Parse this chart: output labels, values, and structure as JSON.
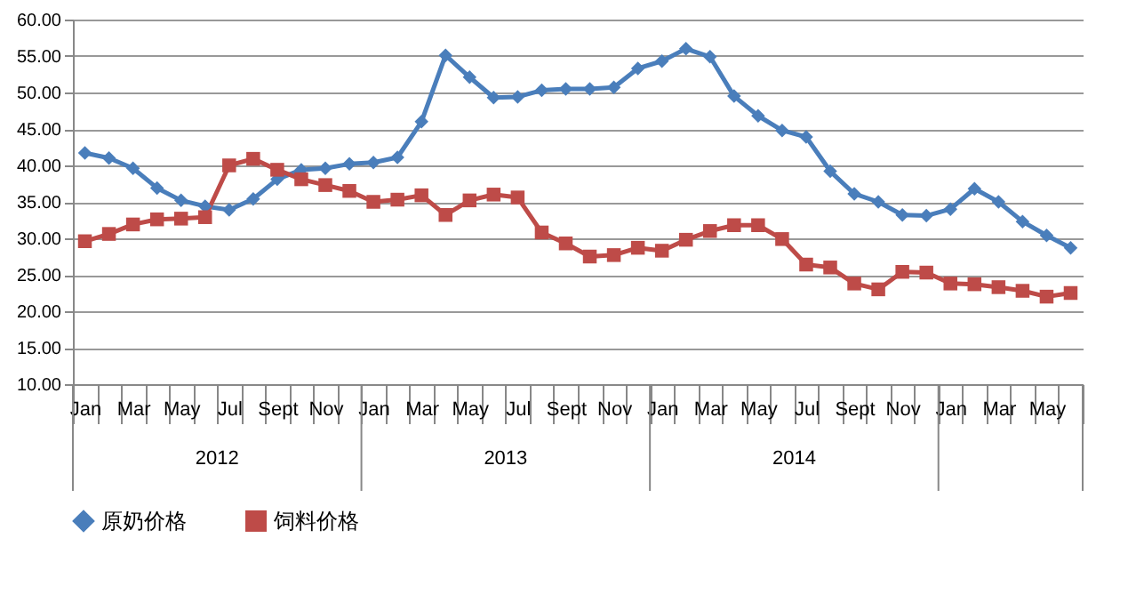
{
  "chart_data": {
    "type": "line",
    "categories": [
      "Jan",
      null,
      "Mar",
      null,
      "May",
      null,
      "Jul",
      null,
      "Sept",
      null,
      "Nov",
      null,
      "Jan",
      null,
      "Mar",
      null,
      "May",
      null,
      "Jul",
      null,
      "Sept",
      null,
      "Nov",
      null,
      "Jan",
      null,
      "Mar",
      null,
      "May",
      null,
      "Jul",
      null,
      "Sept",
      null,
      "Nov",
      null,
      "Jan",
      null,
      "Mar",
      null,
      "May",
      null
    ],
    "series": [
      {
        "name": "原奶价格",
        "color": "#4a7ebb",
        "marker": "diamond",
        "values": [
          41.7,
          41.0,
          39.6,
          36.9,
          35.2,
          34.4,
          33.9,
          35.4,
          38.1,
          39.4,
          39.6,
          40.2,
          40.4,
          41.1,
          46.0,
          55.1,
          52.1,
          49.3,
          49.4,
          50.3,
          50.5,
          50.5,
          50.7,
          53.3,
          54.3,
          56.0,
          54.9,
          49.5,
          46.8,
          44.8,
          43.9,
          39.2,
          36.1,
          35.0,
          33.2,
          33.1,
          34.0,
          36.8,
          35.0,
          32.3,
          30.4,
          28.7
        ]
      },
      {
        "name": "饲料价格",
        "color": "#be4b48",
        "marker": "square",
        "values": [
          29.6,
          30.6,
          31.9,
          32.6,
          32.7,
          32.9,
          40.0,
          40.9,
          39.4,
          38.1,
          37.3,
          36.5,
          35.0,
          35.3,
          35.9,
          33.2,
          35.2,
          36.0,
          35.6,
          30.8,
          29.3,
          27.5,
          27.7,
          28.7,
          28.3,
          29.8,
          31.0,
          31.8,
          31.8,
          29.9,
          26.4,
          26.0,
          23.8,
          23.0,
          25.4,
          25.3,
          23.8,
          23.7,
          23.3,
          22.8,
          22.0,
          22.5
        ]
      }
    ],
    "ylim": [
      10,
      60
    ],
    "yticks": [
      {
        "value": 10,
        "label": "10.00"
      },
      {
        "value": 15,
        "label": "15.00"
      },
      {
        "value": 20,
        "label": "20.00"
      },
      {
        "value": 25,
        "label": "25.00"
      },
      {
        "value": 30,
        "label": "30.00"
      },
      {
        "value": 35,
        "label": "35.00"
      },
      {
        "value": 40,
        "label": "40.00"
      },
      {
        "value": 45,
        "label": "45.00"
      },
      {
        "value": 50,
        "label": "50.00"
      },
      {
        "value": 55,
        "label": "55.00"
      },
      {
        "value": 60,
        "label": "60.00"
      }
    ],
    "annotations": [
      "2012",
      "2013",
      "2014"
    ],
    "grid": "y",
    "legend": "bottom",
    "line_style": "solid"
  }
}
